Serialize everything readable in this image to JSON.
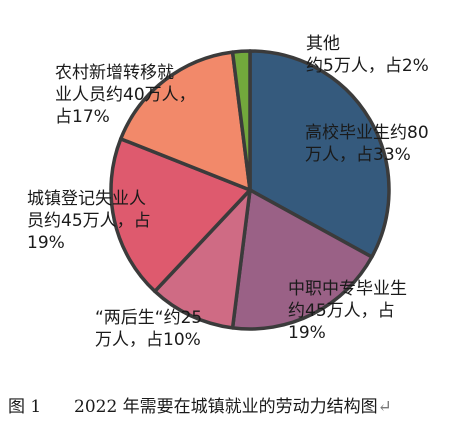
{
  "chart_data": {
    "type": "pie",
    "title": "",
    "unit": "万人",
    "slices": [
      {
        "category": "高校毕业生",
        "value": 80,
        "percent": 33,
        "color": "#355a7d",
        "label_lines": [
          "高校毕业生约80",
          "万人，占33%"
        ]
      },
      {
        "category": "中职中专毕业生",
        "value": 45,
        "percent": 19,
        "color": "#9a6186",
        "label_lines": [
          "中职中专毕业生",
          "约45万人，占",
          "19%"
        ]
      },
      {
        "category": "“两后生”",
        "value": 25,
        "percent": 10,
        "color": "#cf6b84",
        "label_lines": [
          "“两后生“约25",
          "万人，占10%"
        ]
      },
      {
        "category": "城镇登记失业人员",
        "value": 45,
        "percent": 19,
        "color": "#de5a6e",
        "label_lines": [
          "城镇登记失业人",
          "员约45万人，占",
          "19%"
        ]
      },
      {
        "category": "农村新增转移就业人员",
        "value": 40,
        "percent": 17,
        "color": "#f2896a",
        "label_lines": [
          "农村新增转移就",
          "业人员约40万人，",
          "占17%"
        ]
      },
      {
        "category": "其他",
        "value": 5,
        "percent": 2,
        "color": "#72a83c",
        "label_lines": [
          "其他",
          "约5万人，占2%"
        ]
      }
    ]
  },
  "caption": {
    "number": "图 1",
    "text": "2022 年需要在城镇就业的劳动力结构图",
    "mark": "↵"
  }
}
